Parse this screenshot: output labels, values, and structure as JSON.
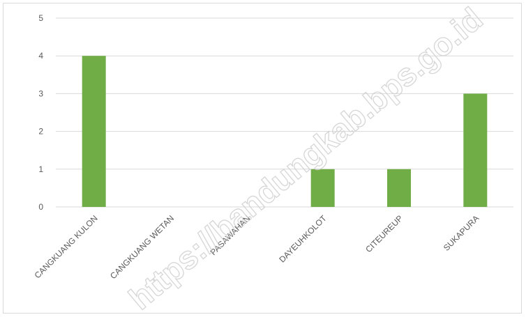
{
  "chart_data": {
    "type": "bar",
    "categories": [
      "CANGKUANG KULON",
      "CANGKUANG WETAN",
      "PASAWAHAN",
      "DAYEUHKOLOT",
      "CITEUREUP",
      "SUKAPURA"
    ],
    "values": [
      4,
      0,
      0,
      1,
      1,
      3
    ],
    "ylim": [
      0,
      5
    ],
    "yticks": [
      "0",
      "1",
      "2",
      "3",
      "4",
      "5"
    ],
    "grid": true,
    "bar_color": "#70ad47",
    "grid_color": "#d9d9d9",
    "title": "",
    "xlabel": "",
    "ylabel": ""
  },
  "watermark": "https://bandungkab.bps.go.id"
}
